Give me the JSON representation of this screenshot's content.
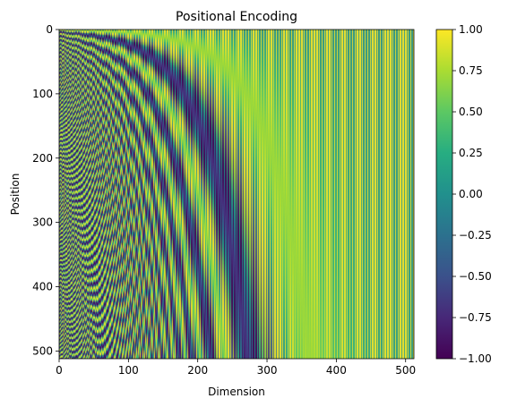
{
  "chart_data": {
    "type": "heatmap",
    "title": "Positional Encoding",
    "xlabel": "Dimension",
    "ylabel": "Position",
    "rows": 512,
    "cols": 512,
    "xlim": [
      0,
      512
    ],
    "ylim": [
      512,
      0
    ],
    "x_ticks": [
      0,
      100,
      200,
      300,
      400,
      500
    ],
    "y_ticks": [
      0,
      100,
      200,
      300,
      400,
      500
    ],
    "formula": "even dimension 2i: sin(pos / 10000^(2i/512)); odd dimension 2i+1: cos(pos / 10000^(2i/512))",
    "colormap": "viridis",
    "colorbar": {
      "vmin": -1.0,
      "vmax": 1.0,
      "ticks": [
        "1.00",
        "0.75",
        "0.50",
        "0.25",
        "0.00",
        "−0.25",
        "−0.50",
        "−0.75",
        "−1.00"
      ],
      "colors": [
        "#440154",
        "#472878",
        "#3b518b",
        "#2c718e",
        "#21908d",
        "#27ad81",
        "#5cc863",
        "#aadc32",
        "#fde725"
      ]
    },
    "grid": false,
    "legend": "none"
  }
}
